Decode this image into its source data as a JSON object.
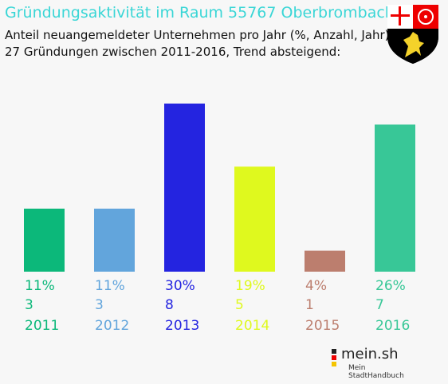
{
  "header": {
    "title": "Gründungsaktivität im Raum 55767 Oberbrombach",
    "subtitle1": "Anteil neuangemeldeter Unternehmen pro Jahr (%, Anzahl, Jahr)",
    "subtitle2": "27 Gründungen zwischen 2011-2016, Trend absteigend:"
  },
  "logo": {
    "name": "mein.sh",
    "tagline": "Mein StadtHandbuch"
  },
  "crest": {
    "icon": "coat-of-arms-icon"
  },
  "chart_data": {
    "type": "bar",
    "categories": [
      "2011",
      "2012",
      "2013",
      "2014",
      "2015",
      "2016"
    ],
    "values": [
      3,
      3,
      8,
      5,
      1,
      7
    ],
    "percent_labels": [
      "11%",
      "11%",
      "30%",
      "19%",
      "4%",
      "26%"
    ],
    "colors": [
      "#0cb87a",
      "#62a5dc",
      "#2424e0",
      "#dff91e",
      "#bc7e6e",
      "#38c797"
    ],
    "ylim": [
      0,
      8
    ],
    "grid": false
  }
}
